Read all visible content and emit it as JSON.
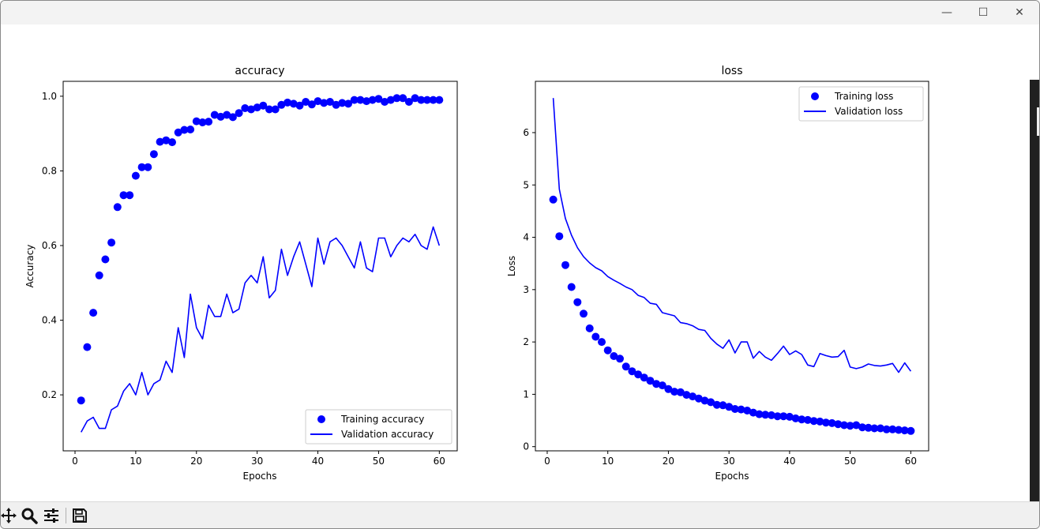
{
  "window": {
    "controls": {
      "minimize": "—",
      "maximize": "☐",
      "close": "✕"
    }
  },
  "colors": {
    "series": "#0000ff",
    "axis": "#000000",
    "toolbar_bg": "#f0f0f0"
  },
  "toolbar": {
    "tools": [
      {
        "name": "pan-icon"
      },
      {
        "name": "zoom-icon"
      },
      {
        "name": "configure-subplots-icon"
      },
      {
        "name": "save-icon"
      }
    ]
  },
  "chart_data": [
    {
      "type": "line",
      "title": "accuracy",
      "xlabel": "Epochs",
      "ylabel": "Accuracy",
      "xlim": [
        -1.95,
        62.95
      ],
      "ylim": [
        0.05,
        1.04
      ],
      "xticks": [
        0,
        10,
        20,
        30,
        40,
        50,
        60
      ],
      "yticks": [
        0.2,
        0.4,
        0.6,
        0.8,
        1.0
      ],
      "xtick_labels": [
        "0",
        "10",
        "20",
        "30",
        "40",
        "50",
        "60"
      ],
      "ytick_labels": [
        "0.2",
        "0.4",
        "0.6",
        "0.8",
        "1.0"
      ],
      "legend_position": "lower right",
      "legend": [
        "Training accuracy",
        "Validation accuracy"
      ],
      "x": [
        1,
        2,
        3,
        4,
        5,
        6,
        7,
        8,
        9,
        10,
        11,
        12,
        13,
        14,
        15,
        16,
        17,
        18,
        19,
        20,
        21,
        22,
        23,
        24,
        25,
        26,
        27,
        28,
        29,
        30,
        31,
        32,
        33,
        34,
        35,
        36,
        37,
        38,
        39,
        40,
        41,
        42,
        43,
        44,
        45,
        46,
        47,
        48,
        49,
        50,
        51,
        52,
        53,
        54,
        55,
        56,
        57,
        58,
        59,
        60
      ],
      "series": [
        {
          "name": "Training accuracy",
          "style": "dots",
          "color": "#0000ff",
          "values": [
            0.185,
            0.328,
            0.42,
            0.52,
            0.563,
            0.608,
            0.703,
            0.735,
            0.735,
            0.787,
            0.81,
            0.81,
            0.845,
            0.878,
            0.882,
            0.877,
            0.903,
            0.91,
            0.911,
            0.933,
            0.93,
            0.932,
            0.95,
            0.945,
            0.95,
            0.944,
            0.955,
            0.968,
            0.965,
            0.97,
            0.975,
            0.965,
            0.965,
            0.977,
            0.983,
            0.98,
            0.975,
            0.985,
            0.978,
            0.987,
            0.982,
            0.985,
            0.977,
            0.982,
            0.98,
            0.99,
            0.99,
            0.987,
            0.99,
            0.993,
            0.985,
            0.99,
            0.995,
            0.995,
            0.985,
            0.995,
            0.99,
            0.99,
            0.99,
            0.99
          ]
        },
        {
          "name": "Validation accuracy",
          "style": "line",
          "color": "#0000ff",
          "values": [
            0.1,
            0.13,
            0.14,
            0.11,
            0.11,
            0.16,
            0.17,
            0.21,
            0.23,
            0.2,
            0.26,
            0.2,
            0.23,
            0.24,
            0.29,
            0.26,
            0.38,
            0.3,
            0.47,
            0.38,
            0.35,
            0.44,
            0.41,
            0.41,
            0.47,
            0.42,
            0.43,
            0.5,
            0.52,
            0.5,
            0.57,
            0.46,
            0.48,
            0.59,
            0.52,
            0.57,
            0.61,
            0.55,
            0.49,
            0.62,
            0.55,
            0.61,
            0.62,
            0.6,
            0.57,
            0.54,
            0.61,
            0.54,
            0.53,
            0.62,
            0.62,
            0.57,
            0.6,
            0.62,
            0.61,
            0.63,
            0.6,
            0.59,
            0.65,
            0.6
          ]
        }
      ]
    },
    {
      "type": "line",
      "title": "loss",
      "xlabel": "Epochs",
      "ylabel": "Loss",
      "xlim": [
        -1.95,
        62.95
      ],
      "ylim": [
        -0.08,
        6.98
      ],
      "xticks": [
        0,
        10,
        20,
        30,
        40,
        50,
        60
      ],
      "yticks": [
        0,
        1,
        2,
        3,
        4,
        5,
        6
      ],
      "xtick_labels": [
        "0",
        "10",
        "20",
        "30",
        "40",
        "50",
        "60"
      ],
      "ytick_labels": [
        "0",
        "1",
        "2",
        "3",
        "4",
        "5",
        "6"
      ],
      "legend_position": "upper right",
      "legend": [
        "Training loss",
        "Validation loss"
      ],
      "x": [
        1,
        2,
        3,
        4,
        5,
        6,
        7,
        8,
        9,
        10,
        11,
        12,
        13,
        14,
        15,
        16,
        17,
        18,
        19,
        20,
        21,
        22,
        23,
        24,
        25,
        26,
        27,
        28,
        29,
        30,
        31,
        32,
        33,
        34,
        35,
        36,
        37,
        38,
        39,
        40,
        41,
        42,
        43,
        44,
        45,
        46,
        47,
        48,
        49,
        50,
        51,
        52,
        53,
        54,
        55,
        56,
        57,
        58,
        59,
        60
      ],
      "series": [
        {
          "name": "Training loss",
          "style": "dots",
          "color": "#0000ff",
          "values": [
            4.72,
            4.02,
            3.47,
            3.05,
            2.76,
            2.54,
            2.26,
            2.1,
            2.0,
            1.84,
            1.73,
            1.68,
            1.53,
            1.44,
            1.38,
            1.32,
            1.26,
            1.2,
            1.17,
            1.1,
            1.05,
            1.04,
            0.99,
            0.96,
            0.92,
            0.88,
            0.85,
            0.8,
            0.79,
            0.76,
            0.72,
            0.71,
            0.69,
            0.65,
            0.62,
            0.61,
            0.6,
            0.58,
            0.58,
            0.57,
            0.54,
            0.52,
            0.51,
            0.49,
            0.48,
            0.46,
            0.45,
            0.43,
            0.41,
            0.4,
            0.41,
            0.37,
            0.36,
            0.35,
            0.35,
            0.33,
            0.33,
            0.32,
            0.31,
            0.3
          ]
        },
        {
          "name": "Validation loss",
          "style": "line",
          "color": "#0000ff",
          "values": [
            6.66,
            4.92,
            4.36,
            4.04,
            3.8,
            3.63,
            3.51,
            3.42,
            3.36,
            3.25,
            3.18,
            3.12,
            3.05,
            3.0,
            2.89,
            2.85,
            2.74,
            2.72,
            2.56,
            2.53,
            2.5,
            2.37,
            2.35,
            2.31,
            2.24,
            2.22,
            2.07,
            1.96,
            1.88,
            2.04,
            1.79,
            2.0,
            2.0,
            1.69,
            1.82,
            1.71,
            1.65,
            1.78,
            1.92,
            1.76,
            1.83,
            1.76,
            1.56,
            1.53,
            1.78,
            1.74,
            1.71,
            1.72,
            1.84,
            1.52,
            1.49,
            1.52,
            1.58,
            1.55,
            1.54,
            1.56,
            1.59,
            1.42,
            1.6,
            1.44
          ]
        }
      ]
    }
  ]
}
